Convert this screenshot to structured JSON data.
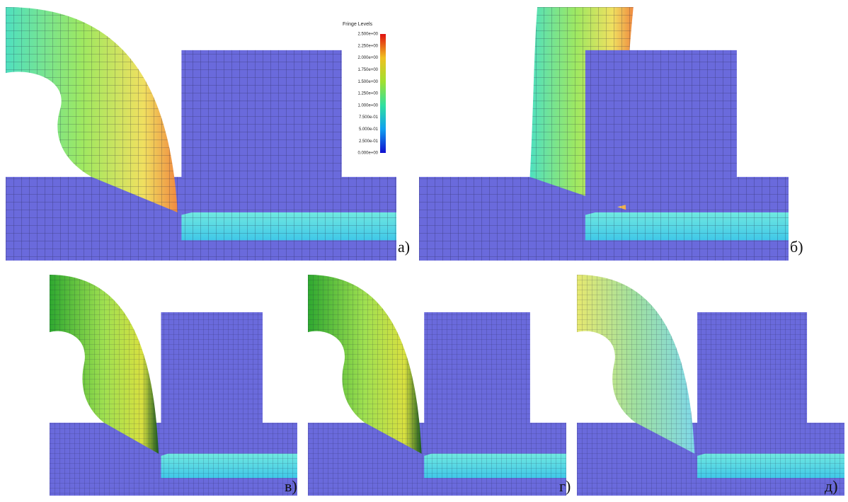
{
  "legend": {
    "title": "Fringe Levels",
    "levels": [
      "2.500e+00",
      "2.250e+00",
      "2.000e+00",
      "1.750e+00",
      "1.500e+00",
      "1.250e+00",
      "1.000e+00",
      "7.500e-01",
      "5.000e-01",
      "2.500e-01",
      "0.000e+00"
    ]
  },
  "panels": [
    {
      "label": "а)"
    },
    {
      "label": "б)"
    },
    {
      "label": "в)"
    },
    {
      "label": "г)"
    },
    {
      "label": "д)"
    }
  ]
}
